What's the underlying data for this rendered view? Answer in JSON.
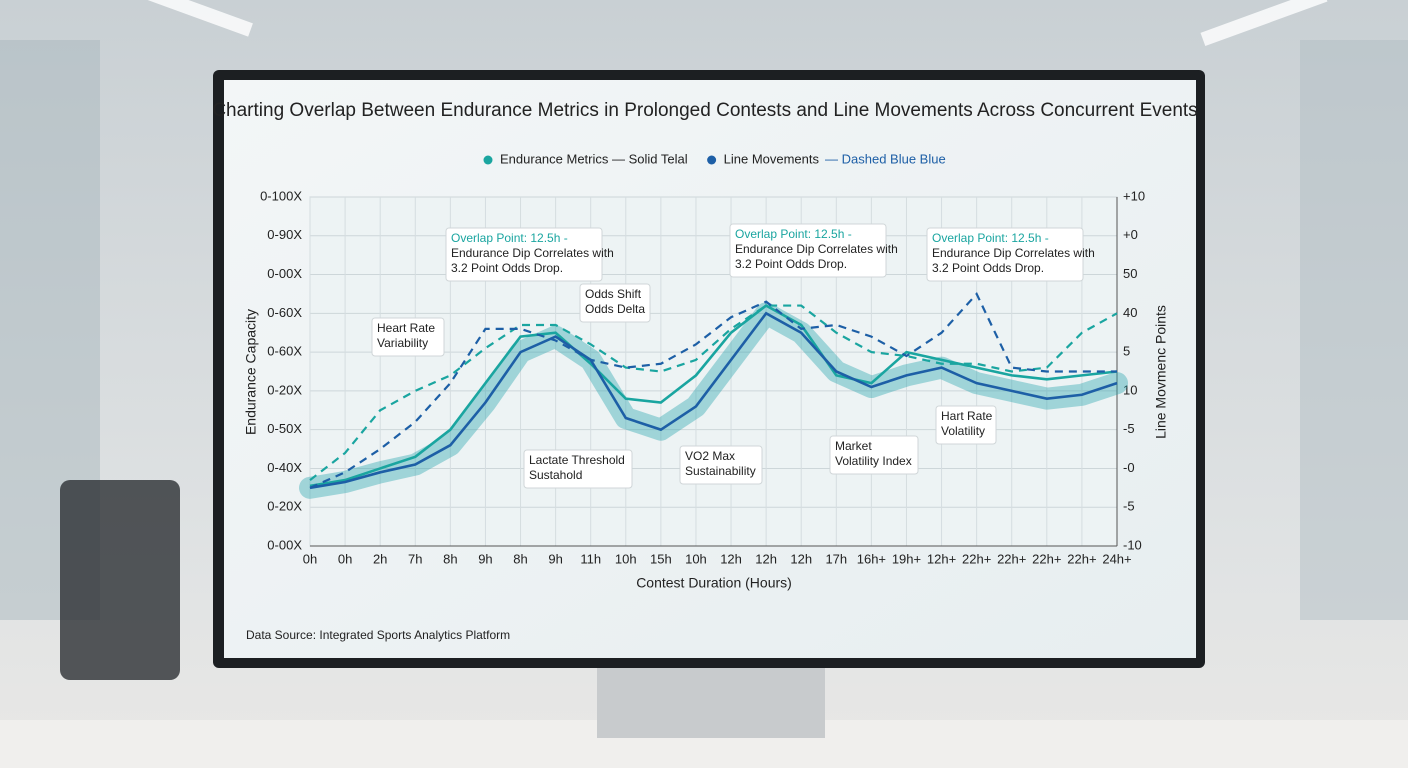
{
  "chart_data": {
    "type": "line",
    "title": "Charting Overlap Between Endurance Metrics in Prolonged Contests and Line Movements Across Concurrent Events",
    "x_label": "Contest Duration (Hours)",
    "y_label": "Endurance Capacity",
    "y2_label": "Line Movmenc Points",
    "source": "Data Source: Integrated Sports Analytics Platform",
    "legend_extra": "— Dashed Blue Blue",
    "categories": [
      "0h",
      "0h",
      "2h",
      "7h",
      "8h",
      "9h",
      "8h",
      "9h",
      "11h",
      "10h",
      "15h",
      "10h",
      "12h",
      "12h",
      "12h",
      "17h",
      "16h+",
      "19h+",
      "12h+",
      "22h+",
      "22h+",
      "22h+",
      "22h+",
      "24h+"
    ],
    "series": [
      {
        "name": "Endurance Metrics — Solid Telal",
        "color": "#1aa5a0",
        "dash": false,
        "values": [
          15.5,
          17,
          20,
          23,
          30,
          42,
          54,
          55,
          47,
          38,
          37,
          44,
          55,
          62,
          57,
          44,
          42,
          50,
          48,
          46,
          44,
          43,
          44,
          45
        ]
      },
      {
        "name": "Line Movements",
        "color": "#1d5fa6",
        "dash": false,
        "values": [
          15,
          16.5,
          19,
          21,
          26,
          37,
          50,
          54,
          48,
          33,
          30,
          36,
          48,
          60,
          55,
          45,
          41,
          44,
          46,
          42,
          40,
          38,
          39,
          42
        ]
      },
      {
        "color": "#1aa5a0",
        "dash": true,
        "values": [
          17,
          24,
          35,
          40,
          44,
          51,
          57,
          57,
          52,
          46,
          45,
          48,
          56,
          62,
          62,
          55,
          50,
          49,
          47,
          47,
          45,
          46,
          55,
          60
        ]
      },
      {
        "color": "#1d5fa6",
        "dash": true,
        "values": [
          15,
          19,
          25,
          32,
          42,
          56,
          56,
          53,
          48,
          46,
          47,
          52,
          59,
          63,
          56,
          57,
          54,
          49,
          55,
          65,
          46,
          45,
          45,
          45
        ]
      }
    ],
    "annotations": [
      "Overlap Point: 12.5h -",
      "Endurance Dip Correlates with",
      "3.2 Point Odds Drop.",
      "Overlap Point: 12.5h -",
      "Endurance Dip Correlates with",
      "3.2 Point Odds Drop.",
      "Overlap Point: 12.5h -",
      "Endurance Dip Correlates with",
      "3.2 Point Odds Drop.",
      "Heart Rate",
      "Variability",
      "Odds Shift",
      "Odds Delta",
      "Lactate Threshold",
      "Sustahold",
      "VO2 Max",
      "Sustainability",
      "Market",
      "Volatility Index",
      "Hart Rate",
      "Volatility"
    ],
    "ylim": [
      0,
      90
    ],
    "yticks": [
      {
        "value": 0,
        "label": "0-00X"
      },
      {
        "value": 10,
        "label": "0-20X"
      },
      {
        "value": 20,
        "label": "0-40X"
      },
      {
        "value": 30,
        "label": "0-50X"
      },
      {
        "value": 40,
        "label": "0-20X"
      },
      {
        "value": 50,
        "label": "0-60X"
      },
      {
        "value": 60,
        "label": "0-60X"
      },
      {
        "value": 70,
        "label": "0-00X"
      },
      {
        "value": 80,
        "label": "0-90X"
      },
      {
        "value": 90,
        "label": "0-100X"
      }
    ],
    "y2lim": [
      0,
      9
    ],
    "y2ticks": [
      {
        "value": 0,
        "label": "-10"
      },
      {
        "value": 1,
        "label": "-5"
      },
      {
        "value": 2,
        "label": "-0"
      },
      {
        "value": 3,
        "label": "-5"
      },
      {
        "value": 4,
        "label": "10"
      },
      {
        "value": 5,
        "label": "5"
      },
      {
        "value": 6,
        "label": "40"
      },
      {
        "value": 7,
        "label": "50"
      },
      {
        "value": 8,
        "label": "+0"
      },
      {
        "value": 9,
        "label": "+10"
      }
    ],
    "grid": true
  }
}
